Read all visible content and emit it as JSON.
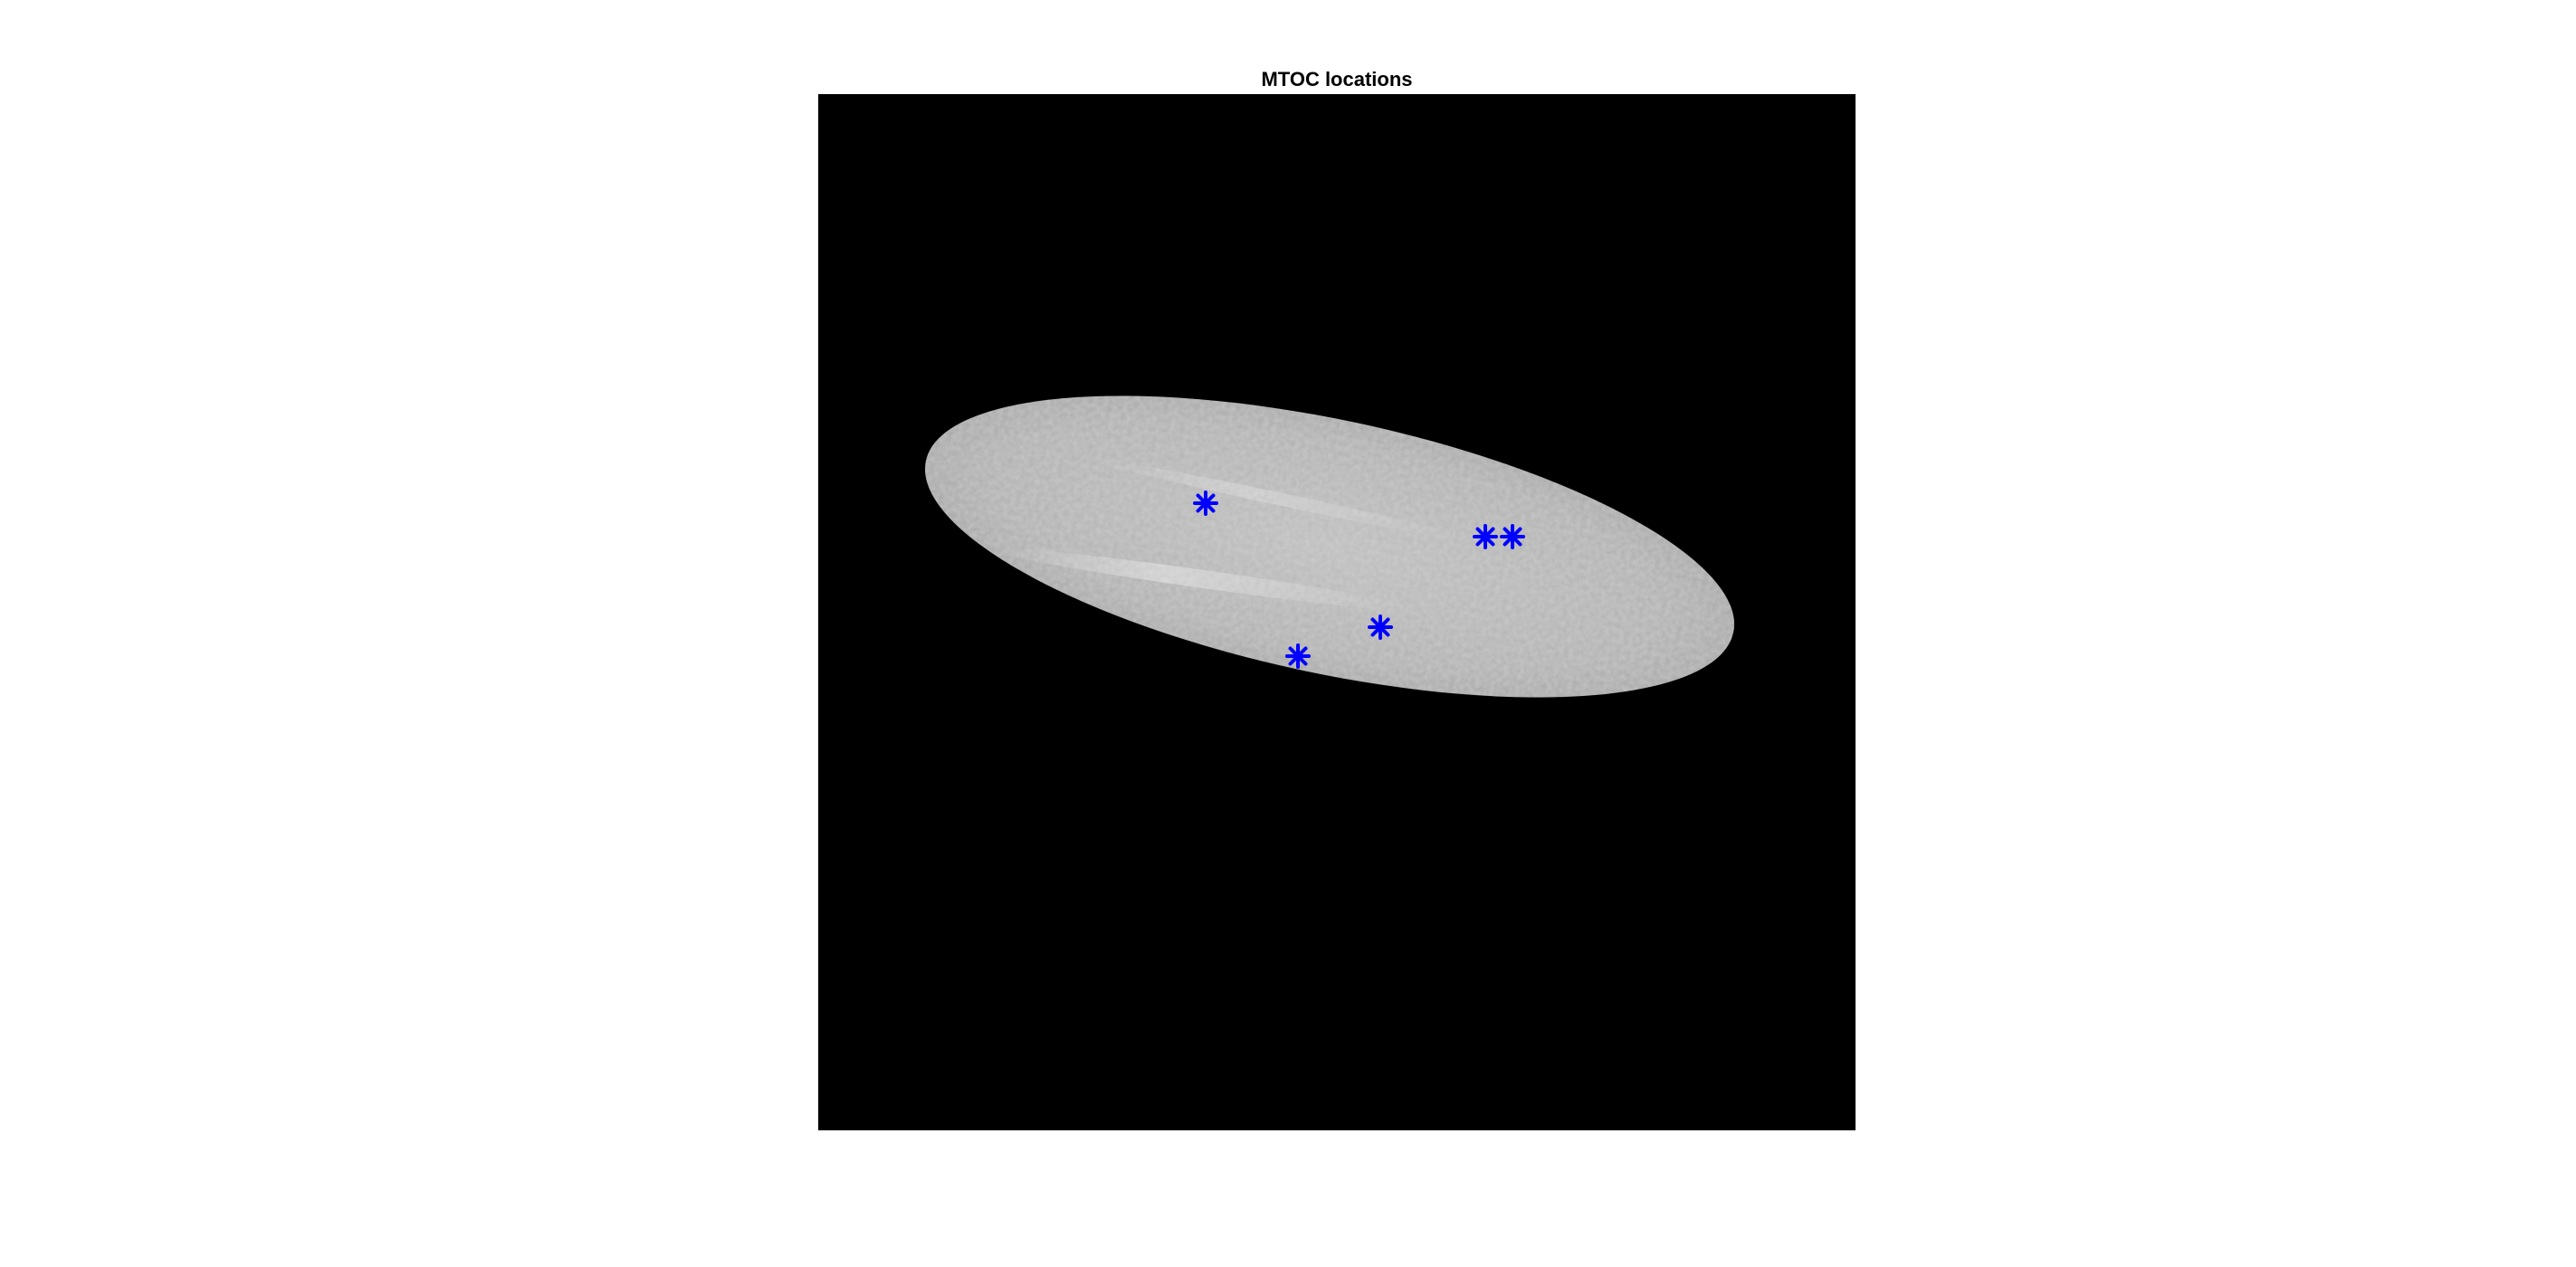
{
  "figure": {
    "title": "MTOC locations"
  },
  "image": {
    "description_name": "cell-grayscale-microscopy",
    "background_color": "#000000",
    "cell_color": "#b4b4b4",
    "marker_color": "#0000ff",
    "marker_style": "asterisk"
  },
  "markers": {
    "count": 5
  }
}
